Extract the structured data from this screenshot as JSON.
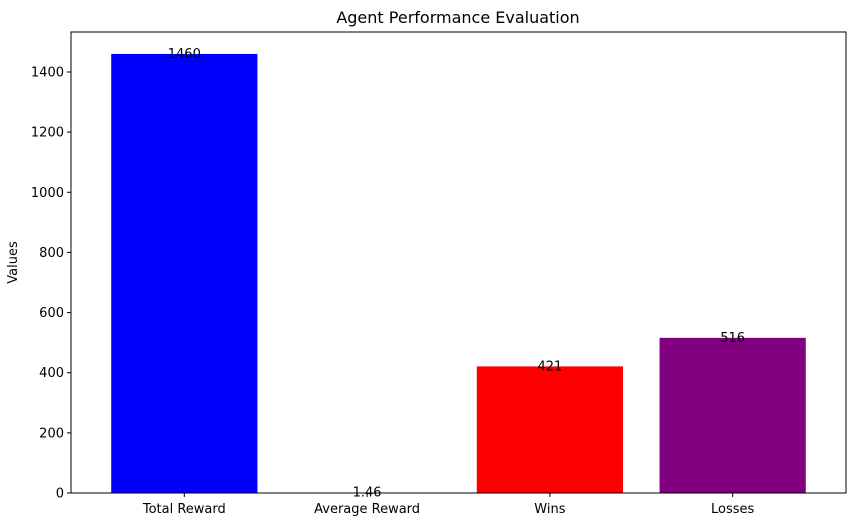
{
  "chart_data": {
    "type": "bar",
    "title": "Agent Performance Evaluation",
    "xlabel": "",
    "ylabel": "Values",
    "categories": [
      "Total Reward",
      "Average Reward",
      "Wins",
      "Losses"
    ],
    "values": [
      1460,
      1.46,
      421,
      516
    ],
    "value_labels": [
      "1460",
      "1.46",
      "421",
      "516"
    ],
    "colors": [
      "#0000ff",
      "#008000",
      "#ff0000",
      "#800080"
    ],
    "ylim": [
      0,
      1533
    ],
    "yticks": [
      0,
      200,
      400,
      600,
      800,
      1000,
      1200,
      1400
    ],
    "grid": false,
    "legend": "none"
  }
}
